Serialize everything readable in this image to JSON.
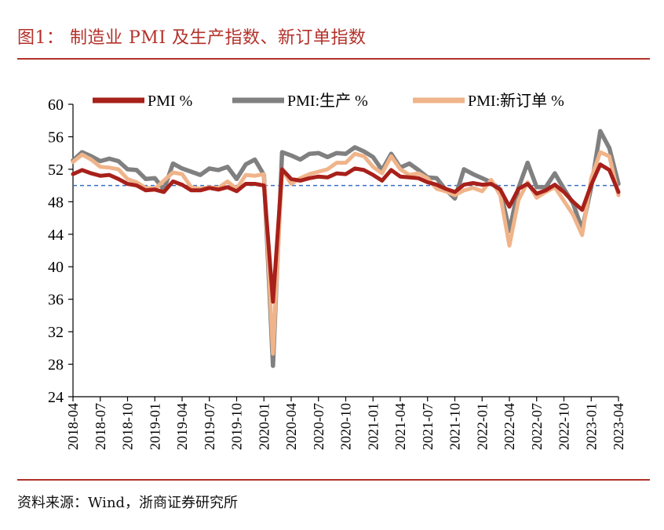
{
  "header": {
    "title": "图1：  制造业 PMI 及生产指数、新订单指数"
  },
  "footer": {
    "source": "资料来源：Wind，浙商证券研究所"
  },
  "colors": {
    "accent": "#b3312a",
    "pmi": "#a8201a",
    "production": "#808080",
    "new_orders": "#f0b48a",
    "baseline": "#3a6fc4"
  },
  "chart_data": {
    "type": "line",
    "ylim": [
      24,
      60
    ],
    "yticks": [
      24,
      28,
      32,
      36,
      40,
      44,
      48,
      52,
      56,
      60
    ],
    "baseline": 50,
    "grid": false,
    "legend_position": "top",
    "x": [
      "2018-04",
      "2018-05",
      "2018-06",
      "2018-07",
      "2018-08",
      "2018-09",
      "2018-10",
      "2018-11",
      "2018-12",
      "2019-01",
      "2019-02",
      "2019-03",
      "2019-04",
      "2019-05",
      "2019-06",
      "2019-07",
      "2019-08",
      "2019-09",
      "2019-10",
      "2019-11",
      "2019-12",
      "2020-01",
      "2020-02",
      "2020-03",
      "2020-04",
      "2020-05",
      "2020-06",
      "2020-07",
      "2020-08",
      "2020-09",
      "2020-10",
      "2020-11",
      "2020-12",
      "2021-01",
      "2021-02",
      "2021-03",
      "2021-04",
      "2021-05",
      "2021-06",
      "2021-07",
      "2021-08",
      "2021-09",
      "2021-10",
      "2021-11",
      "2021-12",
      "2022-01",
      "2022-02",
      "2022-03",
      "2022-04",
      "2022-05",
      "2022-06",
      "2022-07",
      "2022-08",
      "2022-09",
      "2022-10",
      "2022-11",
      "2022-12",
      "2023-01",
      "2023-02",
      "2023-03",
      "2023-04"
    ],
    "xtick_labels": [
      "2018-04",
      "2018-07",
      "2018-10",
      "2019-01",
      "2019-04",
      "2019-07",
      "2019-10",
      "2020-01",
      "2020-04",
      "2020-07",
      "2020-10",
      "2021-01",
      "2021-04",
      "2021-07",
      "2021-10",
      "2022-01",
      "2022-04",
      "2022-07",
      "2022-10",
      "2023-01",
      "2023-04"
    ],
    "series": [
      {
        "name": "PMI %",
        "color": "#a8201a",
        "values": [
          51.4,
          51.9,
          51.5,
          51.2,
          51.3,
          50.8,
          50.2,
          50.0,
          49.4,
          49.5,
          49.2,
          50.5,
          50.1,
          49.4,
          49.4,
          49.7,
          49.5,
          49.8,
          49.3,
          50.2,
          50.2,
          50.0,
          35.7,
          52.0,
          50.8,
          50.6,
          50.9,
          51.1,
          51.0,
          51.5,
          51.4,
          52.1,
          51.9,
          51.3,
          50.6,
          51.9,
          51.1,
          51.0,
          50.9,
          50.4,
          50.1,
          49.6,
          49.2,
          50.1,
          50.3,
          50.1,
          50.2,
          49.5,
          47.4,
          49.6,
          50.2,
          49.0,
          49.4,
          50.1,
          49.2,
          48.0,
          47.0,
          50.1,
          52.6,
          51.9,
          49.2
        ]
      },
      {
        "name": "PMI:生产 %",
        "color": "#808080",
        "values": [
          53.1,
          54.1,
          53.6,
          53.0,
          53.3,
          53.0,
          52.0,
          51.9,
          50.8,
          50.9,
          49.5,
          52.7,
          52.1,
          51.7,
          51.3,
          52.1,
          51.9,
          52.3,
          50.8,
          52.6,
          53.2,
          51.3,
          27.8,
          54.1,
          53.7,
          53.2,
          53.9,
          54.0,
          53.5,
          54.0,
          53.9,
          54.7,
          54.2,
          53.5,
          51.9,
          53.9,
          52.2,
          52.7,
          51.9,
          51.0,
          50.9,
          49.5,
          48.4,
          52.0,
          51.4,
          50.9,
          50.4,
          49.5,
          44.4,
          49.7,
          52.8,
          49.8,
          49.8,
          51.5,
          49.6,
          47.8,
          44.6,
          49.8,
          56.7,
          54.6,
          50.2
        ]
      },
      {
        "name": "PMI:新订单 %",
        "color": "#f0b48a",
        "values": [
          52.9,
          53.8,
          53.2,
          52.3,
          52.2,
          52.0,
          50.8,
          50.4,
          49.7,
          49.6,
          50.6,
          51.6,
          51.4,
          49.8,
          49.6,
          49.8,
          49.7,
          50.5,
          49.6,
          51.3,
          51.2,
          51.4,
          29.3,
          52.0,
          50.2,
          50.9,
          51.4,
          51.7,
          52.0,
          52.8,
          52.8,
          53.9,
          53.6,
          52.3,
          51.5,
          53.6,
          52.0,
          51.3,
          51.5,
          50.9,
          49.6,
          49.3,
          48.8,
          49.4,
          49.7,
          49.3,
          50.7,
          48.8,
          42.6,
          48.2,
          50.4,
          48.5,
          49.2,
          49.8,
          48.1,
          46.4,
          43.9,
          50.9,
          54.1,
          53.6,
          48.8
        ]
      }
    ]
  }
}
